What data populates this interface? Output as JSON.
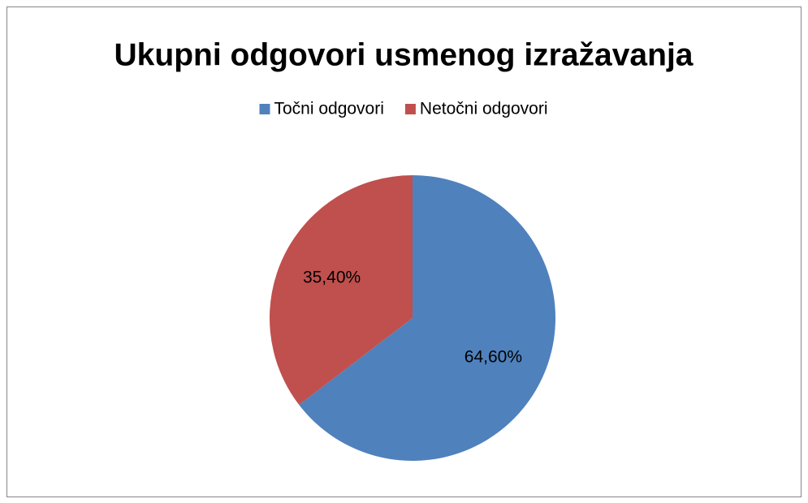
{
  "chart_data": {
    "type": "pie",
    "title": "Ukupni odgovori usmenog izražavanja",
    "categories": [
      "Točni odgovori",
      "Netočni odgovori"
    ],
    "values": [
      64.6,
      35.4
    ],
    "value_labels": [
      "64,60%",
      "35,40%"
    ],
    "colors": [
      "#4f81bd",
      "#c0504d"
    ],
    "legend": "top"
  }
}
